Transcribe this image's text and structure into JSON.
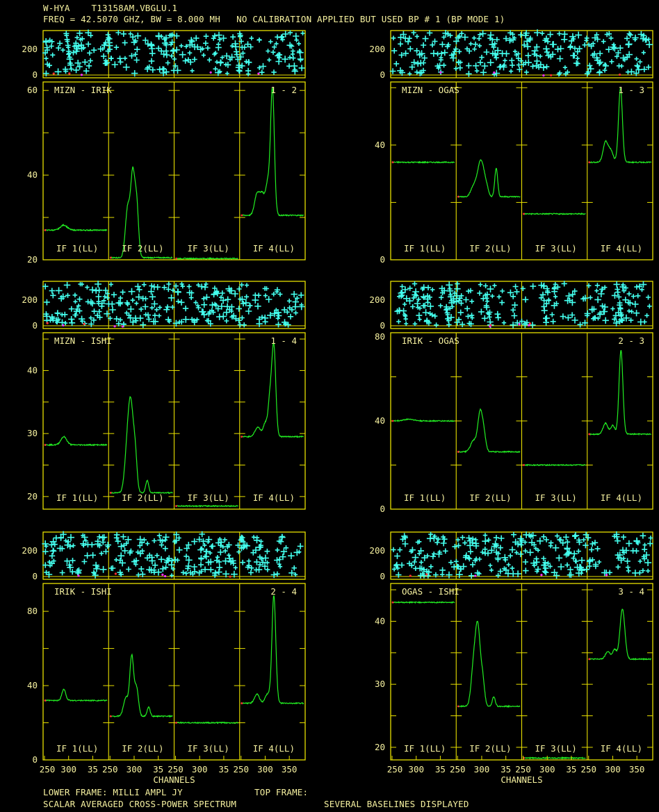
{
  "header": {
    "source": "W-HYA",
    "file": "T13158AM.VBGLU.1",
    "freq_line": "FREQ = 42.5070 GHZ, BW = 8.000 MH",
    "calib_line": "NO CALIBRATION APPLIED BUT USED BP # 1 (BP MODE 1)"
  },
  "footer": {
    "lower_frame": "LOWER FRAME: MILLI AMPL JY",
    "top_frame": "TOP FRAME:",
    "spectrum": "SCALAR AVERAGED CROSS-POWER SPECTRUM",
    "baselines": "SEVERAL BASELINES DISPLAYED"
  },
  "colors": {
    "frame": "#e8e000",
    "text": "#f7f2a0",
    "amplitude": "#22ee22",
    "phase": "#44ffee",
    "marker_red": "#ff3030",
    "marker_magenta": "#ff30ff"
  },
  "chart_data": {
    "type": "line",
    "xlabel": "CHANNELS",
    "x_ticks": [
      "250",
      "300",
      "35",
      "250",
      "300",
      "35",
      "250",
      "300",
      "35",
      "250",
      "300",
      "350"
    ],
    "if_labels": [
      "IF 1(LL)",
      "IF 2(LL)",
      "IF 3(LL)",
      "IF 4(LL)"
    ],
    "phase_ticks": [
      "200",
      "0"
    ],
    "panels": [
      {
        "baseline": "MIZN - IRIK",
        "index": "1 - 2",
        "ylim": [
          20,
          62
        ],
        "y_ticks": [
          "60",
          "40",
          "20"
        ],
        "base": [
          27,
          20.5,
          20.3,
          30.5
        ],
        "peaks": [
          [
            [
              290,
              1.2,
              7
            ]
          ],
          [
            [
              287,
              12,
              5
            ],
            [
              297,
              18,
              4
            ],
            [
              305,
              13,
              4
            ]
          ],
          [],
          [
            [
              283,
              5,
              5
            ],
            [
              294,
              5,
              5
            ],
            [
              305,
              7,
              4
            ],
            [
              315,
              30,
              4
            ]
          ]
        ]
      },
      {
        "baseline": "MIZN - OGAS",
        "index": "1 - 3",
        "ylim": [
          0,
          62
        ],
        "y_ticks": [
          "40",
          "0"
        ],
        "base": [
          34,
          22,
          16,
          34
        ],
        "peaks": [
          [],
          [
            [
              284,
              4,
              6
            ],
            [
              295,
              8,
              5
            ],
            [
              302,
              8,
              5
            ],
            [
              310,
              3,
              4
            ],
            [
              330,
              10,
              3
            ]
          ],
          [],
          [
            [
              285,
              7,
              5
            ],
            [
              296,
              4,
              5
            ],
            [
              316,
              26,
              4
            ]
          ]
        ]
      },
      {
        "baseline": "MIZN - ISHI",
        "index": "1 - 4",
        "ylim": [
          18,
          46
        ],
        "y_ticks": [
          "40",
          "30",
          "20"
        ],
        "base": [
          28.2,
          20.6,
          18.5,
          29.5
        ],
        "peaks": [
          [
            [
              290,
              1.3,
              6
            ]
          ],
          [
            [
              285,
              6,
              5
            ],
            [
              293,
              13,
              5
            ],
            [
              302,
              6,
              4
            ],
            [
              327,
              2,
              3
            ]
          ],
          [],
          [
            [
              285,
              1.5,
              6
            ],
            [
              300,
              2,
              4
            ],
            [
              310,
              6,
              4
            ],
            [
              318,
              14,
              4
            ]
          ]
        ]
      },
      {
        "baseline": "IRIK - OGAS",
        "index": "2 - 3",
        "ylim": [
          0,
          80
        ],
        "y_ticks": [
          "80",
          "40",
          "0"
        ],
        "base": [
          40,
          26,
          20,
          34
        ],
        "peaks": [
          [
            [
              285,
              0.8,
              10
            ]
          ],
          [
            [
              283,
              5,
              6
            ],
            [
              297,
              18,
              5
            ],
            [
              305,
              6,
              4
            ]
          ],
          [],
          [
            [
              285,
              5,
              5
            ],
            [
              300,
              4,
              4
            ],
            [
              317,
              38,
              4
            ]
          ]
        ]
      },
      {
        "baseline": "IRIK - ISHI",
        "index": "2 - 4",
        "ylim": [
          0,
          95
        ],
        "y_ticks": [
          "80",
          "40",
          "0"
        ],
        "base": [
          32,
          23.5,
          20,
          30.5
        ],
        "peaks": [
          [
            [
              290,
              6,
              4
            ]
          ],
          [
            [
              283,
              10,
              5
            ],
            [
              295,
              32,
              4
            ],
            [
              305,
              15,
              4
            ],
            [
              330,
              5,
              3
            ]
          ],
          [],
          [
            [
              283,
              5,
              5
            ],
            [
              305,
              5,
              5
            ],
            [
              318,
              58,
              4
            ]
          ]
        ]
      },
      {
        "baseline": "OGAS - ISHI",
        "index": "3 - 4",
        "ylim": [
          18,
          46
        ],
        "y_ticks": [
          "40",
          "30",
          "20"
        ],
        "base": [
          43,
          26.5,
          18.3,
          34
        ],
        "peaks": [
          [],
          [
            [
              283,
              6,
              5
            ],
            [
              292,
              12,
              5
            ],
            [
              302,
              4,
              4
            ],
            [
              325,
              1.5,
              3
            ]
          ],
          [],
          [
            [
              290,
              1.2,
              5
            ],
            [
              304,
              1.5,
              4
            ],
            [
              320,
              8,
              5
            ]
          ]
        ]
      }
    ]
  }
}
